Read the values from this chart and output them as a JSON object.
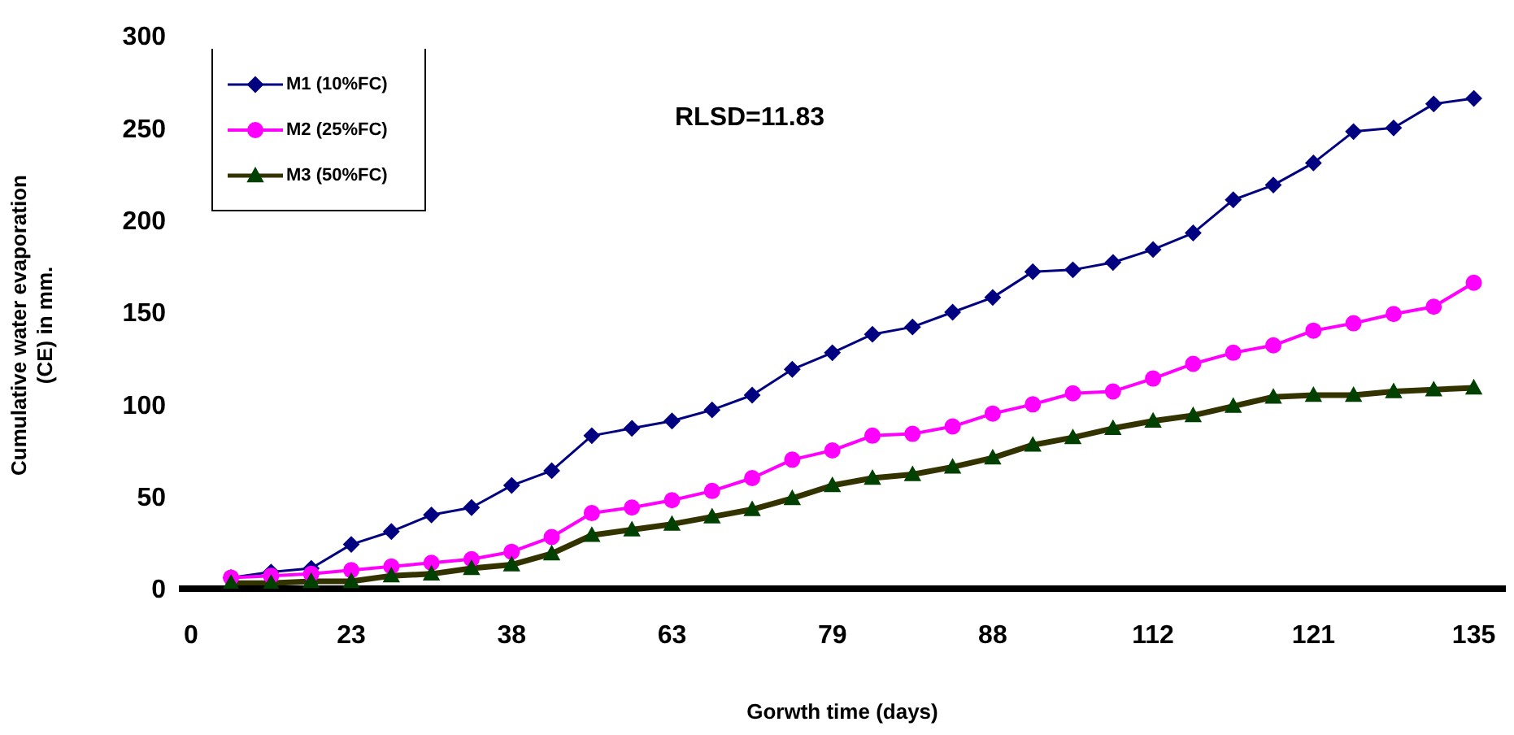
{
  "chart_data": {
    "type": "line",
    "xlabel": "Gorwth time (days)",
    "ylabel": "Cumulative water evaporation\n(CE) in mm.",
    "annotations": [
      "RLSD=11.83"
    ],
    "categories": [
      "0",
      null,
      null,
      null,
      "23",
      null,
      null,
      null,
      "38",
      null,
      null,
      null,
      "63",
      null,
      null,
      null,
      "79",
      null,
      null,
      null,
      "88",
      null,
      null,
      null,
      "112",
      null,
      null,
      null,
      "121",
      null,
      null,
      null,
      "135"
    ],
    "ylim": [
      0,
      300
    ],
    "yticks": [
      0,
      50,
      100,
      150,
      200,
      250,
      300
    ],
    "grid": false,
    "legend": "top left",
    "line_style": "solid",
    "series": [
      {
        "name": "M1 (10%FC)",
        "color": "#000080",
        "marker": "diamond",
        "values": [
          null,
          6,
          9,
          11,
          24,
          31,
          40,
          44,
          56,
          64,
          83,
          87,
          91,
          97,
          105,
          119,
          128,
          138,
          142,
          150,
          158,
          172,
          173,
          177,
          184,
          193,
          211,
          219,
          231,
          248,
          250,
          263,
          266
        ]
      },
      {
        "name": "M2 (25%FC)",
        "color": "#ff00ff",
        "marker": "circle",
        "values": [
          null,
          6,
          7,
          8,
          10,
          12,
          14,
          16,
          20,
          28,
          41,
          44,
          48,
          53,
          60,
          70,
          75,
          83,
          84,
          88,
          95,
          100,
          106,
          107,
          114,
          122,
          128,
          132,
          140,
          144,
          149,
          153,
          166
        ]
      },
      {
        "name": "M3 (50%FC)",
        "color": "#333300",
        "marker": "triangle",
        "values": [
          null,
          3,
          3,
          4,
          4,
          7,
          8,
          11,
          13,
          19,
          29,
          32,
          35,
          39,
          43,
          49,
          56,
          60,
          62,
          66,
          71,
          78,
          82,
          87,
          91,
          94,
          99,
          104,
          105,
          105,
          107,
          108,
          109
        ]
      }
    ]
  }
}
